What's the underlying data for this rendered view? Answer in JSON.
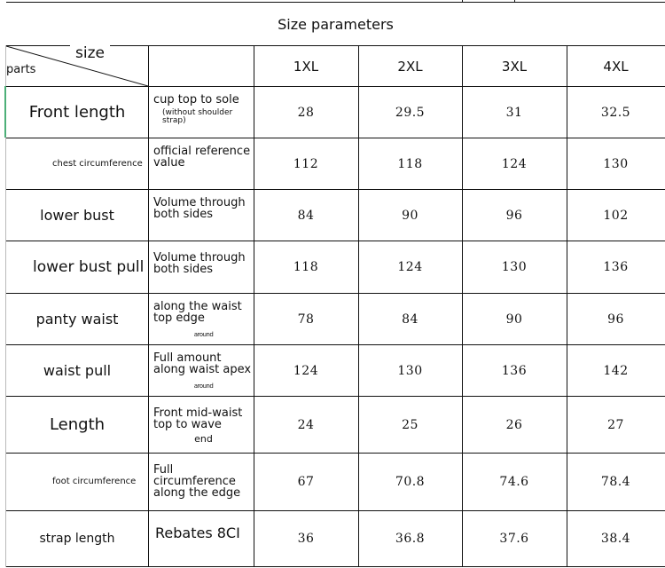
{
  "title": "Size parameters",
  "corner": {
    "top_label": "size",
    "bottom_label": "parts"
  },
  "sizes": [
    "1XL",
    "2XL",
    "3XL",
    "4XL"
  ],
  "rows": [
    {
      "part": "Front length",
      "desc": "cup top to sole",
      "desc_sub": "(without shoulder strap)",
      "values": [
        "28",
        "29.5",
        "31",
        "32.5"
      ]
    },
    {
      "part": "chest circumference",
      "desc": "official reference value",
      "values": [
        "112",
        "118",
        "124",
        "130"
      ]
    },
    {
      "part": "lower bust",
      "desc": "Volume through both sides",
      "values": [
        "84",
        "90",
        "96",
        "102"
      ]
    },
    {
      "part": "lower bust pull",
      "desc": "Volume through both sides",
      "values": [
        "118",
        "124",
        "130",
        "136"
      ]
    },
    {
      "part": "panty waist",
      "desc": "along the waist top edge",
      "desc_note": "around",
      "values": [
        "78",
        "84",
        "90",
        "96"
      ]
    },
    {
      "part": "waist pull",
      "desc": "Full amount along waist apex",
      "desc_note": "around",
      "values": [
        "124",
        "130",
        "136",
        "142"
      ]
    },
    {
      "part": "Length",
      "desc": "Front mid-waist top to wave",
      "desc_end": "end",
      "values": [
        "24",
        "25",
        "26",
        "27"
      ]
    },
    {
      "part": "foot circumference",
      "desc": "Full circumference along the edge",
      "values": [
        "67",
        "70.8",
        "74.6",
        "78.4"
      ]
    },
    {
      "part": "strap length",
      "desc": "Rebates 8CI",
      "values": [
        "36",
        "36.8",
        "37.6",
        "38.4"
      ]
    }
  ]
}
